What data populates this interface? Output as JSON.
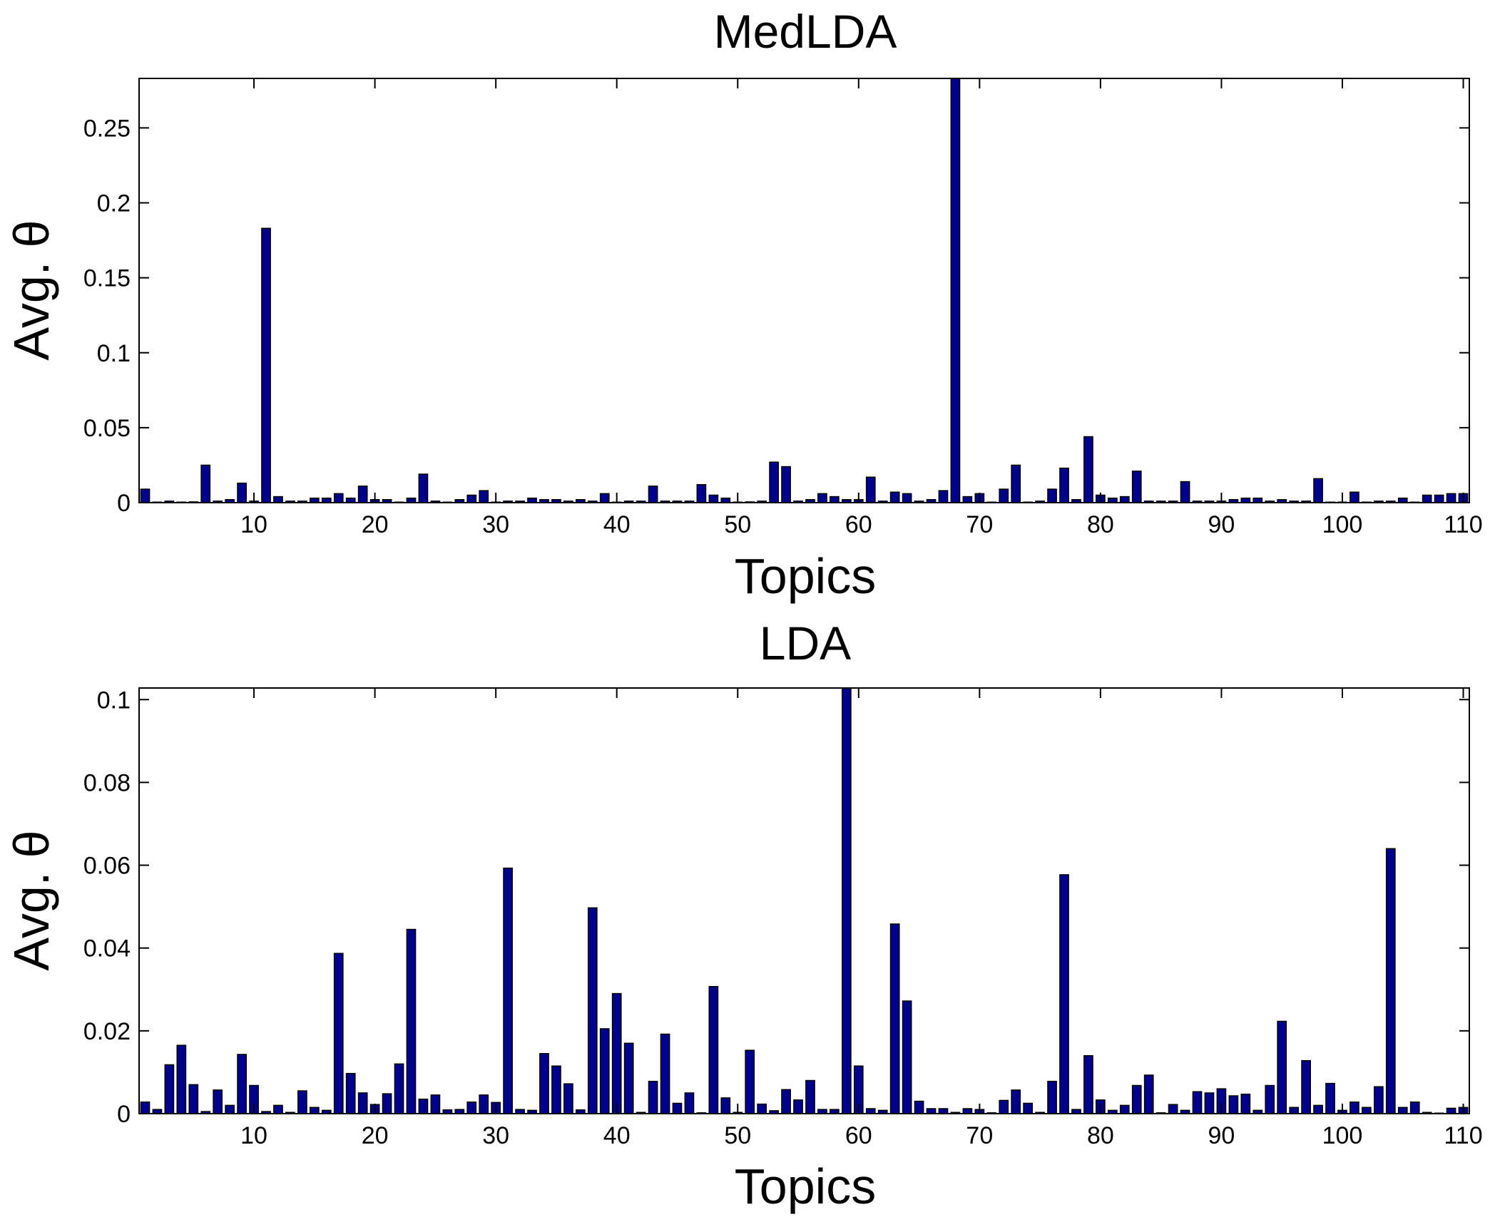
{
  "chart_data": [
    {
      "type": "bar",
      "title": "MedLDA",
      "xlabel": "Topics",
      "ylabel": "Avg. θ",
      "xlim": [
        0.5,
        110.5
      ],
      "ylim": [
        0,
        0.283
      ],
      "xticks": [
        10,
        20,
        30,
        40,
        50,
        60,
        70,
        80,
        90,
        100,
        110
      ],
      "yticks": [
        0,
        0.05,
        0.1,
        0.15,
        0.2,
        0.25
      ],
      "ytick_labels": [
        "0",
        "0.05",
        "0.1",
        "0.15",
        "0.2",
        "0.25"
      ],
      "grid": false,
      "bar_color": "#00008f",
      "x": [
        1,
        2,
        3,
        4,
        5,
        6,
        7,
        8,
        9,
        10,
        11,
        12,
        13,
        14,
        15,
        16,
        17,
        18,
        19,
        20,
        21,
        22,
        23,
        24,
        25,
        26,
        27,
        28,
        29,
        30,
        31,
        32,
        33,
        34,
        35,
        36,
        37,
        38,
        39,
        40,
        41,
        42,
        43,
        44,
        45,
        46,
        47,
        48,
        49,
        50,
        51,
        52,
        53,
        54,
        55,
        56,
        57,
        58,
        59,
        60,
        61,
        62,
        63,
        64,
        65,
        66,
        67,
        68,
        69,
        70,
        71,
        72,
        73,
        74,
        75,
        76,
        77,
        78,
        79,
        80,
        81,
        82,
        83,
        84,
        85,
        86,
        87,
        88,
        89,
        90,
        91,
        92,
        93,
        94,
        95,
        96,
        97,
        98,
        99,
        100,
        101,
        102,
        103,
        104,
        105,
        106,
        107,
        108,
        109,
        110
      ],
      "values": [
        0.009,
        0,
        0.001,
        0,
        0.0005,
        0.025,
        0.001,
        0.002,
        0.013,
        0.001,
        0.183,
        0.004,
        0.001,
        0.001,
        0.003,
        0.003,
        0.006,
        0.003,
        0.011,
        0.002,
        0.002,
        0,
        0.003,
        0.019,
        0.001,
        0,
        0.002,
        0.005,
        0.008,
        0,
        0.001,
        0.001,
        0.003,
        0.002,
        0.002,
        0.001,
        0.002,
        0.001,
        0.006,
        0,
        0.001,
        0.001,
        0.011,
        0.001,
        0.001,
        0.001,
        0.012,
        0.005,
        0.003,
        0,
        0.0005,
        0.001,
        0.027,
        0.024,
        0.001,
        0.002,
        0.006,
        0.004,
        0.002,
        0.002,
        0.017,
        0.001,
        0.007,
        0.006,
        0.001,
        0.002,
        0.008,
        0.283,
        0.004,
        0.006,
        0,
        0.009,
        0.025,
        0,
        0.001,
        0.009,
        0.023,
        0.002,
        0.044,
        0.005,
        0.003,
        0.004,
        0.021,
        0.001,
        0.001,
        0.001,
        0.014,
        0.001,
        0.001,
        0.001,
        0.002,
        0.003,
        0.003,
        0.001,
        0.002,
        0.001,
        0.001,
        0.016,
        0,
        0,
        0.007,
        0,
        0.001,
        0.001,
        0.003,
        0,
        0.005,
        0.005,
        0.006,
        0.006
      ]
    },
    {
      "type": "bar",
      "title": "LDA",
      "xlabel": "Topics",
      "ylabel": "Avg. θ",
      "xlim": [
        0.5,
        110.5
      ],
      "ylim": [
        0,
        0.1028
      ],
      "xticks": [
        10,
        20,
        30,
        40,
        50,
        60,
        70,
        80,
        90,
        100,
        110
      ],
      "yticks": [
        0,
        0.02,
        0.04,
        0.06,
        0.08,
        0.1
      ],
      "ytick_labels": [
        "0",
        "0.02",
        "0.04",
        "0.06",
        "0.08",
        "0.1"
      ],
      "grid": false,
      "bar_color": "#00008f",
      "x": [
        1,
        2,
        3,
        4,
        5,
        6,
        7,
        8,
        9,
        10,
        11,
        12,
        13,
        14,
        15,
        16,
        17,
        18,
        19,
        20,
        21,
        22,
        23,
        24,
        25,
        26,
        27,
        28,
        29,
        30,
        31,
        32,
        33,
        34,
        35,
        36,
        37,
        38,
        39,
        40,
        41,
        42,
        43,
        44,
        45,
        46,
        47,
        48,
        49,
        50,
        51,
        52,
        53,
        54,
        55,
        56,
        57,
        58,
        59,
        60,
        61,
        62,
        63,
        64,
        65,
        66,
        67,
        68,
        69,
        70,
        71,
        72,
        73,
        74,
        75,
        76,
        77,
        78,
        79,
        80,
        81,
        82,
        83,
        84,
        85,
        86,
        87,
        88,
        89,
        90,
        91,
        92,
        93,
        94,
        95,
        96,
        97,
        98,
        99,
        100,
        101,
        102,
        103,
        104,
        105,
        106,
        107,
        108,
        109,
        110
      ],
      "values": [
        0.0028,
        0.001,
        0.0118,
        0.0165,
        0.007,
        0.0005,
        0.0057,
        0.002,
        0.0143,
        0.0068,
        0.0005,
        0.002,
        0.0003,
        0.0055,
        0.0015,
        0.0008,
        0.0387,
        0.0097,
        0.005,
        0.0022,
        0.0048,
        0.012,
        0.0445,
        0.0035,
        0.0045,
        0.0009,
        0.001,
        0.0028,
        0.0045,
        0.0027,
        0.0593,
        0.001,
        0.0008,
        0.0145,
        0.0115,
        0.0072,
        0.0009,
        0.0497,
        0.0205,
        0.029,
        0.017,
        0.0003,
        0.0078,
        0.0192,
        0.0025,
        0.005,
        0.0002,
        0.0307,
        0.0038,
        0.0003,
        0.0153,
        0.0023,
        0.0007,
        0.0058,
        0.0033,
        0.008,
        0.001,
        0.001,
        0.1028,
        0.0115,
        0.0012,
        0.0008,
        0.0458,
        0.0272,
        0.003,
        0.0012,
        0.0012,
        0.0003,
        0.0012,
        0.001,
        0.0002,
        0.0032,
        0.0057,
        0.0025,
        0.0003,
        0.0078,
        0.0577,
        0.001,
        0.014,
        0.0033,
        0.0008,
        0.002,
        0.0068,
        0.0093,
        0.0002,
        0.0022,
        0.0008,
        0.0053,
        0.005,
        0.006,
        0.0043,
        0.0047,
        0.0008,
        0.0068,
        0.0223,
        0.0015,
        0.0128,
        0.002,
        0.0073,
        0.0008,
        0.0028,
        0.0015,
        0.0065,
        0.064,
        0.0015,
        0.0028,
        0.0003,
        0.0001,
        0.0013,
        0.0015
      ]
    }
  ]
}
